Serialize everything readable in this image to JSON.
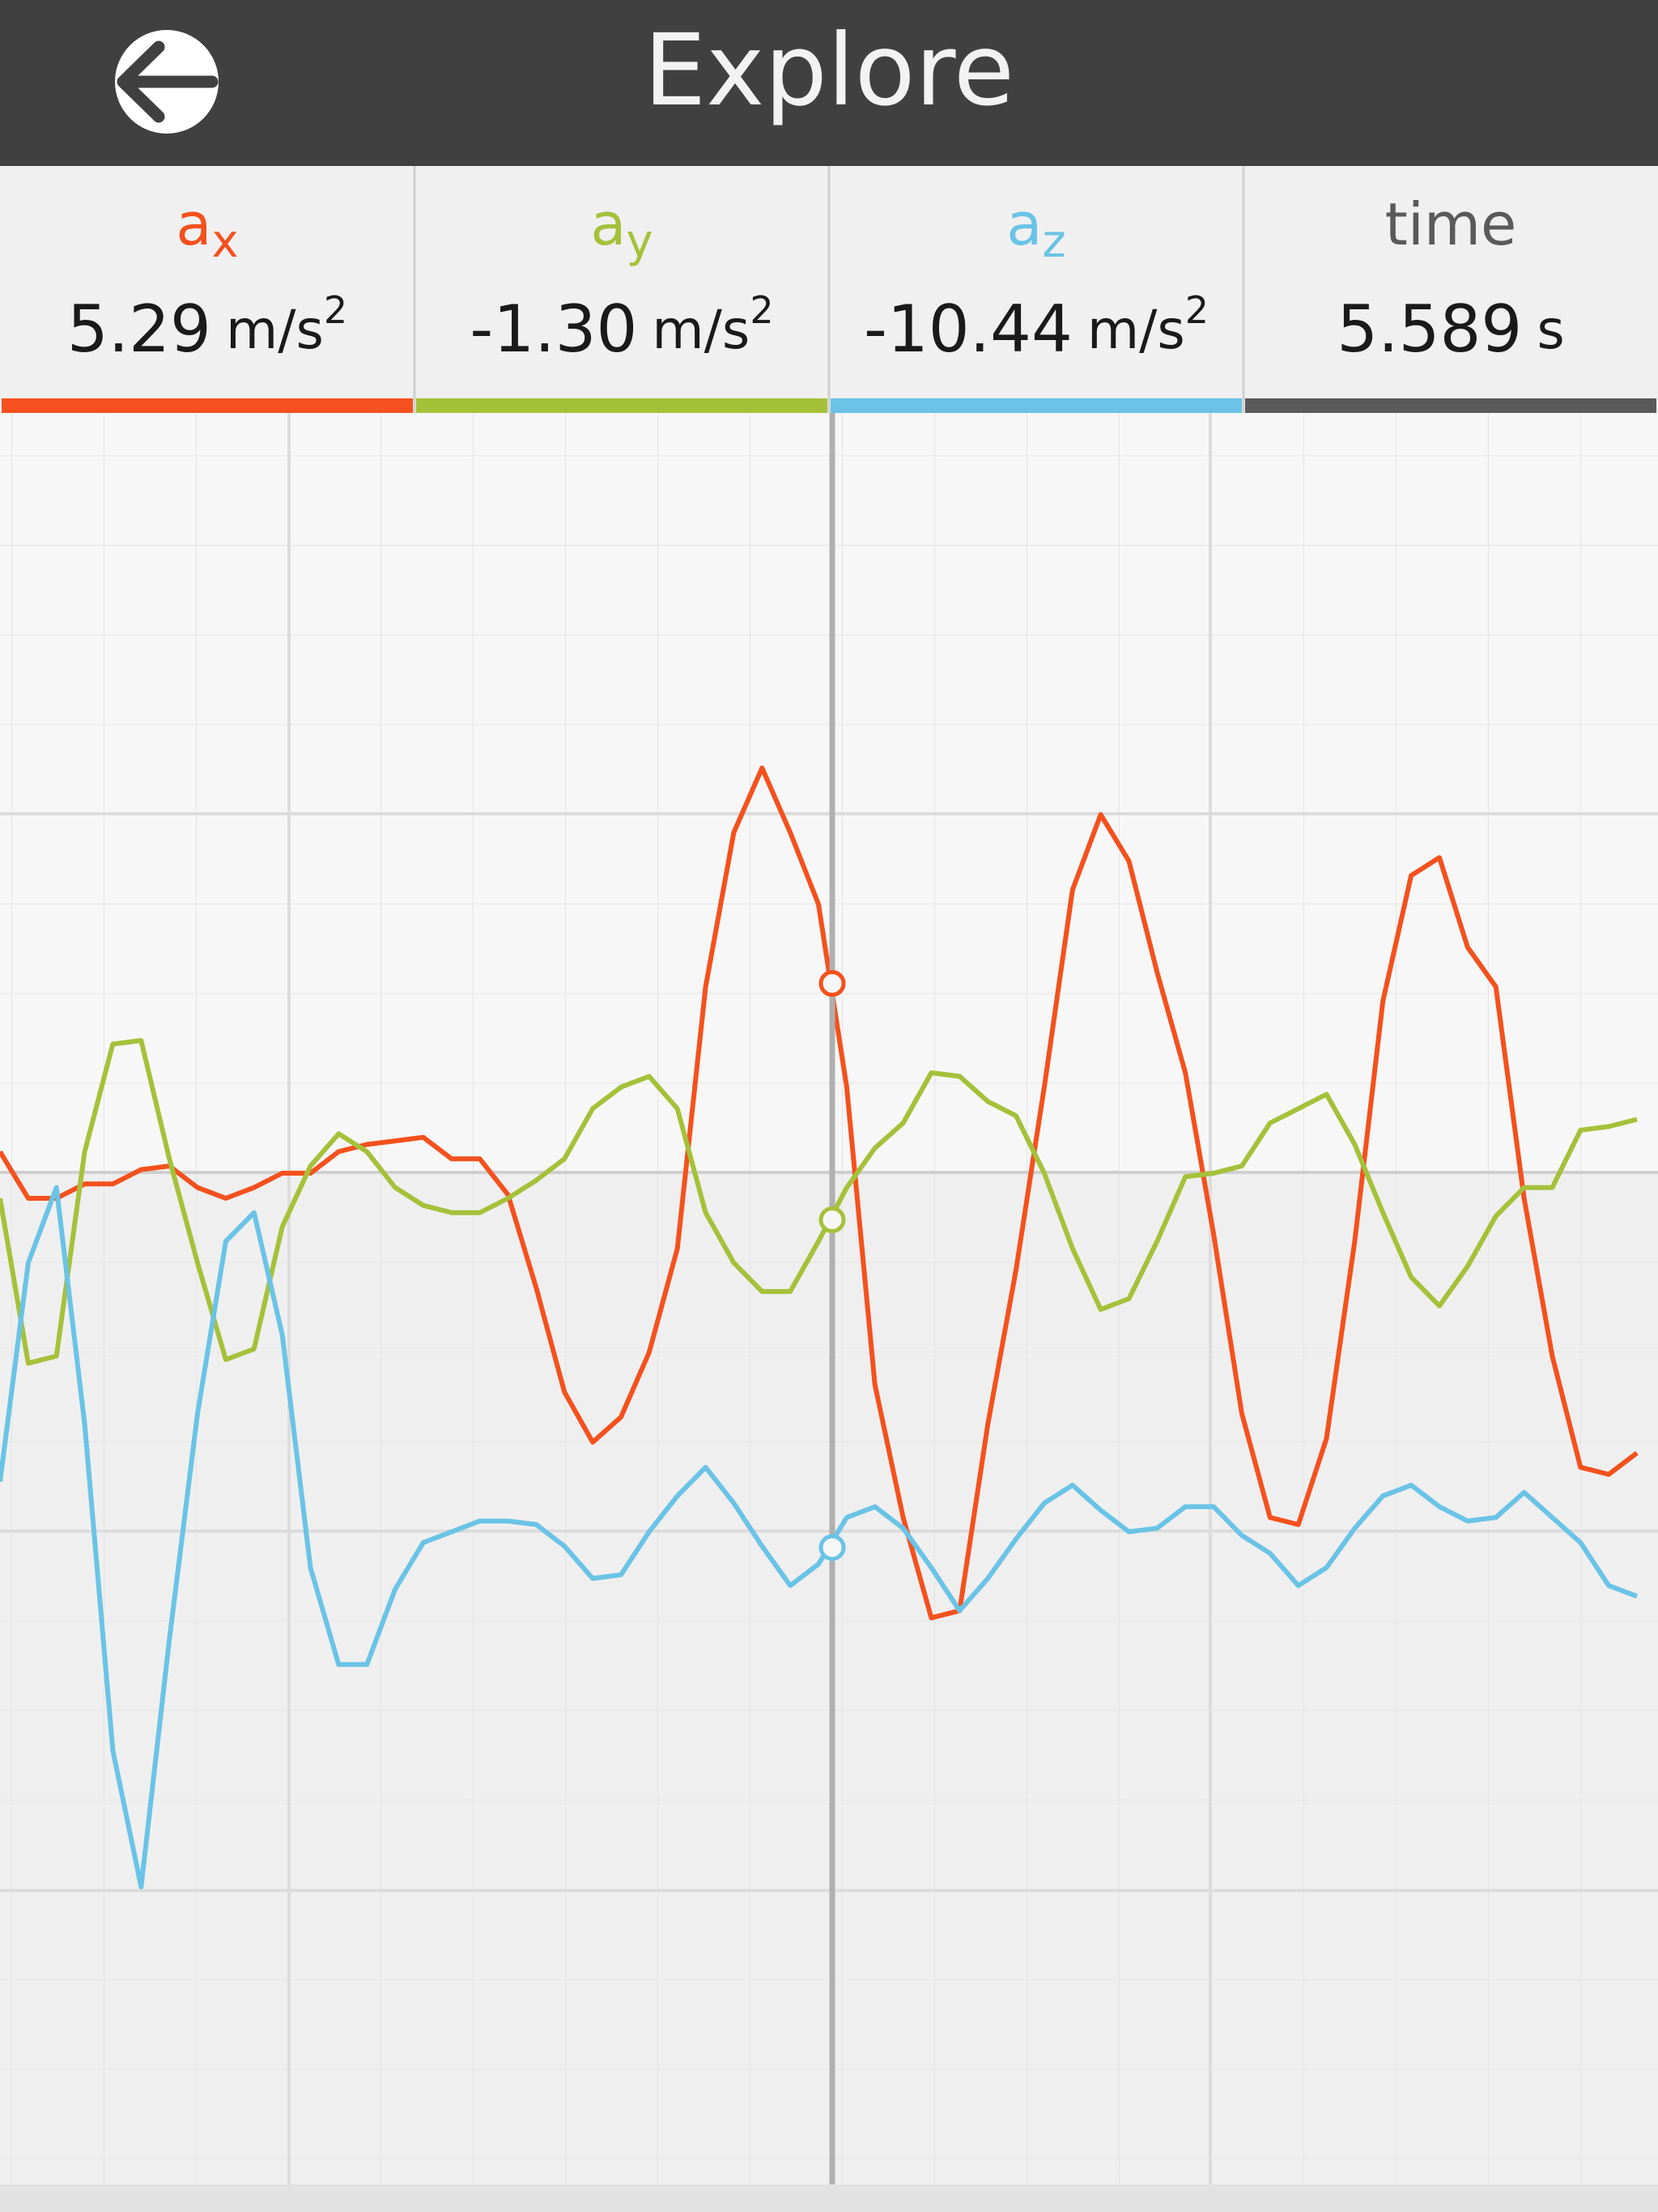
{
  "header": {
    "title": "Explore"
  },
  "readouts": [
    {
      "symbol": "a",
      "subscript": "x",
      "value": 5.29,
      "unit": "m/s",
      "unit_power": "2",
      "color": "#f4511e"
    },
    {
      "symbol": "a",
      "subscript": "y",
      "value": -1.3,
      "value_label": "-1.30",
      "unit": "m/s",
      "unit_power": "2",
      "color": "#a5c13a"
    },
    {
      "symbol": "a",
      "subscript": "z",
      "value": -10.44,
      "unit": "m/s",
      "unit_power": "2",
      "color": "#6ac3e6"
    },
    {
      "symbol": "time",
      "value": 5.589,
      "unit": "s",
      "color": "#5a5a5a"
    }
  ],
  "chart_data": {
    "type": "line",
    "ylim": [
      -28.2,
      21.2
    ],
    "series": [
      {
        "color": "#f4511e",
        "values": [
          0.6,
          -0.7,
          -0.7,
          -0.3,
          -0.3,
          0.1,
          0.2,
          -0.4,
          -0.7,
          -0.4,
          0.0,
          0.0,
          0.6,
          0.8,
          0.9,
          1.0,
          0.4,
          0.4,
          -0.6,
          -3.2,
          -6.1,
          -7.5,
          -6.8,
          -5.0,
          -2.1,
          5.2,
          9.5,
          11.3,
          9.5,
          7.5,
          2.4,
          -5.9,
          -9.6,
          -12.4,
          -12.2,
          -7.0,
          -2.7,
          2.4,
          7.9,
          10.0,
          8.7,
          5.6,
          2.8,
          -1.7,
          -6.7,
          -9.6,
          -9.8,
          -7.4,
          -1.9,
          4.8,
          8.3,
          8.8,
          6.3,
          5.2,
          -0.7,
          -5.1,
          -8.2,
          -8.4,
          -7.8
        ]
      },
      {
        "color": "#a5c13a",
        "values": [
          -0.7,
          -5.3,
          -5.1,
          0.6,
          3.6,
          3.7,
          0.4,
          -2.5,
          -5.2,
          -4.9,
          -1.5,
          0.2,
          1.1,
          0.6,
          -0.4,
          -0.9,
          -1.1,
          -1.1,
          -0.7,
          -0.2,
          0.4,
          1.8,
          2.4,
          2.7,
          1.8,
          -1.1,
          -2.5,
          -3.3,
          -3.3,
          -1.9,
          -0.4,
          0.7,
          1.4,
          2.8,
          2.7,
          2.0,
          1.6,
          0.0,
          -2.1,
          -3.8,
          -3.5,
          -1.9,
          -0.1,
          0.0,
          0.2,
          1.4,
          1.8,
          2.2,
          0.8,
          -1.1,
          -2.9,
          -3.7,
          -2.6,
          -1.2,
          -0.4,
          -0.4,
          1.2,
          1.3,
          1.5
        ]
      },
      {
        "color": "#6ac3e6",
        "values": [
          -8.6,
          -2.5,
          -0.4,
          -7.0,
          -16.1,
          -19.9,
          -13.0,
          -6.7,
          -1.9,
          -1.1,
          -4.5,
          -11.0,
          -13.7,
          -13.7,
          -11.6,
          -10.3,
          -10.0,
          -9.7,
          -9.7,
          -9.8,
          -10.4,
          -11.3,
          -11.2,
          -10.0,
          -9.0,
          -8.2,
          -9.2,
          -10.4,
          -11.5,
          -10.9,
          -9.6,
          -9.3,
          -9.9,
          -11.0,
          -12.2,
          -11.3,
          -10.2,
          -9.2,
          -8.7,
          -9.4,
          -10.0,
          -9.9,
          -9.3,
          -9.3,
          -10.1,
          -10.6,
          -11.5,
          -11.0,
          -9.9,
          -9.0,
          -8.7,
          -9.3,
          -9.7,
          -9.6,
          -8.9,
          -9.6,
          -10.3,
          -11.5,
          -11.8
        ]
      }
    ]
  }
}
